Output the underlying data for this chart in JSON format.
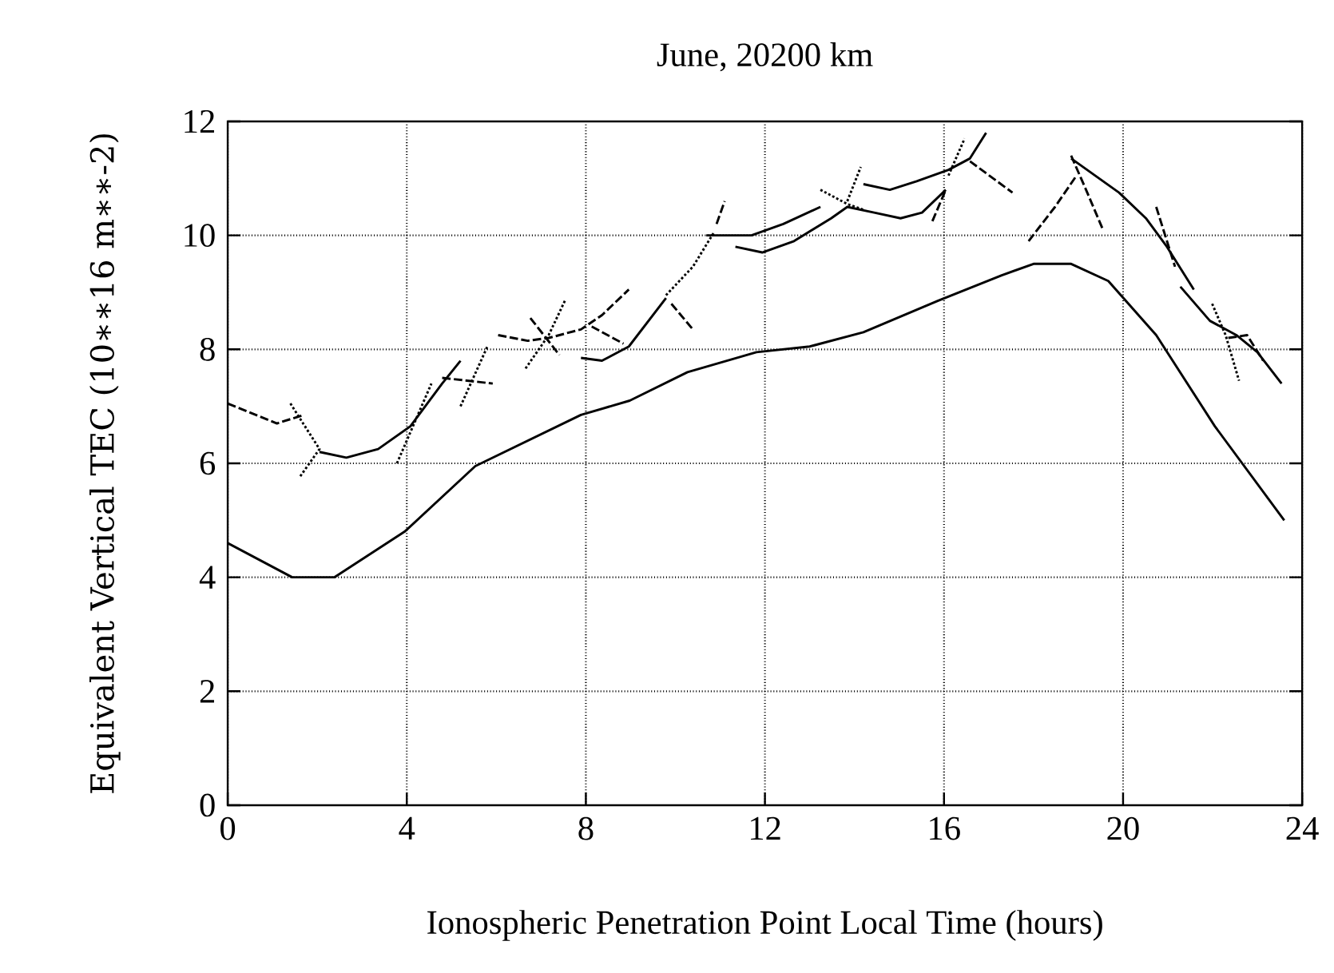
{
  "chart_data": {
    "type": "line",
    "title": "June, 20200 km",
    "xlabel": "Ionospheric Penetration Point Local Time (hours)",
    "ylabel": "Equivalent Vertical TEC (10∗∗16 m∗∗-2)",
    "xlim": [
      0,
      24
    ],
    "ylim": [
      0,
      12
    ],
    "xticks": [
      0,
      4,
      8,
      12,
      16,
      20,
      24
    ],
    "yticks": [
      0,
      2,
      4,
      6,
      8,
      10,
      12
    ],
    "grid": true,
    "series": [
      {
        "color": "#000000",
        "line_style": "solid",
        "x": [
          0,
          1.44,
          2.38,
          3.95,
          5.53,
          7.89,
          8.98,
          10.27,
          11.81,
          13.0,
          14.2,
          15.86,
          17.29,
          18.0,
          18.84,
          19.67,
          20.74,
          22.05,
          23.6
        ],
        "values": [
          4.6,
          4.0,
          4.0,
          4.8,
          5.95,
          6.85,
          7.1,
          7.6,
          7.95,
          8.05,
          8.3,
          8.85,
          9.3,
          9.5,
          9.5,
          9.2,
          8.25,
          6.65,
          5.0
        ]
      },
      {
        "color": "#000000",
        "line_style": "dashed",
        "x": [
          0,
          1.1,
          1.7
        ],
        "values": [
          7.05,
          6.7,
          6.85
        ]
      },
      {
        "color": "#000000",
        "line_style": "dotted",
        "x": [
          1.4,
          2.05,
          1.6
        ],
        "values": [
          7.05,
          6.25,
          5.75
        ]
      },
      {
        "color": "#000000",
        "line_style": "solid",
        "x": [
          2.05,
          2.65,
          3.36,
          4.08,
          4.79,
          5.2
        ],
        "values": [
          6.2,
          6.1,
          6.25,
          6.65,
          7.4,
          7.8
        ]
      },
      {
        "color": "#000000",
        "line_style": "dotted",
        "x": [
          3.78,
          4.44,
          4.55
        ],
        "values": [
          6.0,
          7.2,
          7.4
        ]
      },
      {
        "color": "#000000",
        "line_style": "dashed",
        "x": [
          4.79,
          5.92
        ],
        "values": [
          7.5,
          7.4
        ]
      },
      {
        "color": "#000000",
        "line_style": "dotted",
        "x": [
          5.2,
          5.8
        ],
        "values": [
          7.0,
          8.05
        ]
      },
      {
        "color": "#000000",
        "line_style": "dashed",
        "x": [
          6.04,
          6.7,
          7.17,
          7.89,
          8.36,
          8.96
        ],
        "values": [
          8.25,
          8.15,
          8.2,
          8.35,
          8.6,
          9.05
        ]
      },
      {
        "color": "#000000",
        "line_style": "dotted",
        "x": [
          7.53,
          7.17,
          6.64
        ],
        "values": [
          8.85,
          8.25,
          7.65
        ]
      },
      {
        "color": "#000000",
        "line_style": "dashed",
        "x": [
          6.76,
          7.41
        ],
        "values": [
          8.55,
          7.9
        ]
      },
      {
        "color": "#000000",
        "line_style": "dashed",
        "x": [
          8.13,
          8.84
        ],
        "values": [
          8.4,
          8.1
        ]
      },
      {
        "color": "#000000",
        "line_style": "solid",
        "x": [
          7.89,
          8.36,
          8.96,
          9.79
        ],
        "values": [
          7.85,
          7.8,
          8.05,
          8.9
        ]
      },
      {
        "color": "#000000",
        "line_style": "dotted",
        "x": [
          9.79,
          10.39,
          10.86
        ],
        "values": [
          8.95,
          9.45,
          10.05
        ]
      },
      {
        "color": "#000000",
        "line_style": "dashed",
        "x": [
          9.91,
          10.39
        ],
        "values": [
          8.8,
          8.35
        ]
      },
      {
        "color": "#000000",
        "line_style": "dashed",
        "x": [
          10.92,
          11.1
        ],
        "values": [
          10.2,
          10.6
        ]
      },
      {
        "color": "#000000",
        "line_style": "solid",
        "x": [
          10.69,
          11.46,
          11.7,
          12.41,
          13.24
        ],
        "values": [
          10.0,
          10.0,
          10.0,
          10.2,
          10.5
        ]
      },
      {
        "color": "#000000",
        "line_style": "dotted",
        "x": [
          13.24,
          13.84,
          14.2
        ],
        "values": [
          10.8,
          10.55,
          10.45
        ]
      },
      {
        "color": "#000000",
        "line_style": "solid",
        "x": [
          11.34,
          11.94,
          12.65,
          13.48,
          13.84,
          14.44,
          15.03,
          15.51,
          16.04
        ],
        "values": [
          9.8,
          9.7,
          9.9,
          10.3,
          10.5,
          10.4,
          10.3,
          10.4,
          10.8
        ]
      },
      {
        "color": "#000000",
        "line_style": "dashed",
        "x": [
          15.74,
          16.04
        ],
        "values": [
          10.25,
          10.8
        ]
      },
      {
        "color": "#000000",
        "line_style": "dotted",
        "x": [
          13.84,
          14.14
        ],
        "values": [
          10.6,
          11.2
        ]
      },
      {
        "color": "#000000",
        "line_style": "solid",
        "x": [
          14.2,
          14.79,
          15.39,
          16.1,
          16.58,
          16.94
        ],
        "values": [
          10.9,
          10.8,
          10.95,
          11.15,
          11.35,
          11.8
        ]
      },
      {
        "color": "#000000",
        "line_style": "dotted",
        "x": [
          16.1,
          16.46
        ],
        "values": [
          11.05,
          11.7
        ]
      },
      {
        "color": "#000000",
        "line_style": "dashed",
        "x": [
          16.58,
          17.53
        ],
        "values": [
          11.3,
          10.75
        ]
      },
      {
        "color": "#000000",
        "line_style": "dashed",
        "x": [
          17.89,
          18.48,
          18.96
        ],
        "values": [
          9.9,
          10.5,
          11.05
        ]
      },
      {
        "color": "#000000",
        "line_style": "dashed",
        "x": [
          18.84,
          19.2,
          19.55
        ],
        "values": [
          11.4,
          10.75,
          10.1
        ]
      },
      {
        "color": "#000000",
        "line_style": "solid",
        "x": [
          18.84,
          19.91,
          20.51,
          20.98,
          21.58
        ],
        "values": [
          11.35,
          10.75,
          10.3,
          9.8,
          9.05
        ]
      },
      {
        "color": "#000000",
        "line_style": "dashed",
        "x": [
          20.74,
          21.16
        ],
        "values": [
          10.5,
          9.45
        ]
      },
      {
        "color": "#000000",
        "line_style": "solid",
        "x": [
          21.28,
          21.94,
          22.53,
          23.0,
          23.54
        ],
        "values": [
          9.1,
          8.5,
          8.25,
          7.95,
          7.4
        ]
      },
      {
        "color": "#000000",
        "line_style": "dotted",
        "x": [
          21.99,
          22.29,
          22.59
        ],
        "values": [
          8.8,
          8.25,
          7.45
        ]
      },
      {
        "color": "#000000",
        "line_style": "dashed",
        "x": [
          22.35,
          22.77,
          23.13
        ],
        "values": [
          8.2,
          8.25,
          7.8
        ]
      }
    ]
  }
}
